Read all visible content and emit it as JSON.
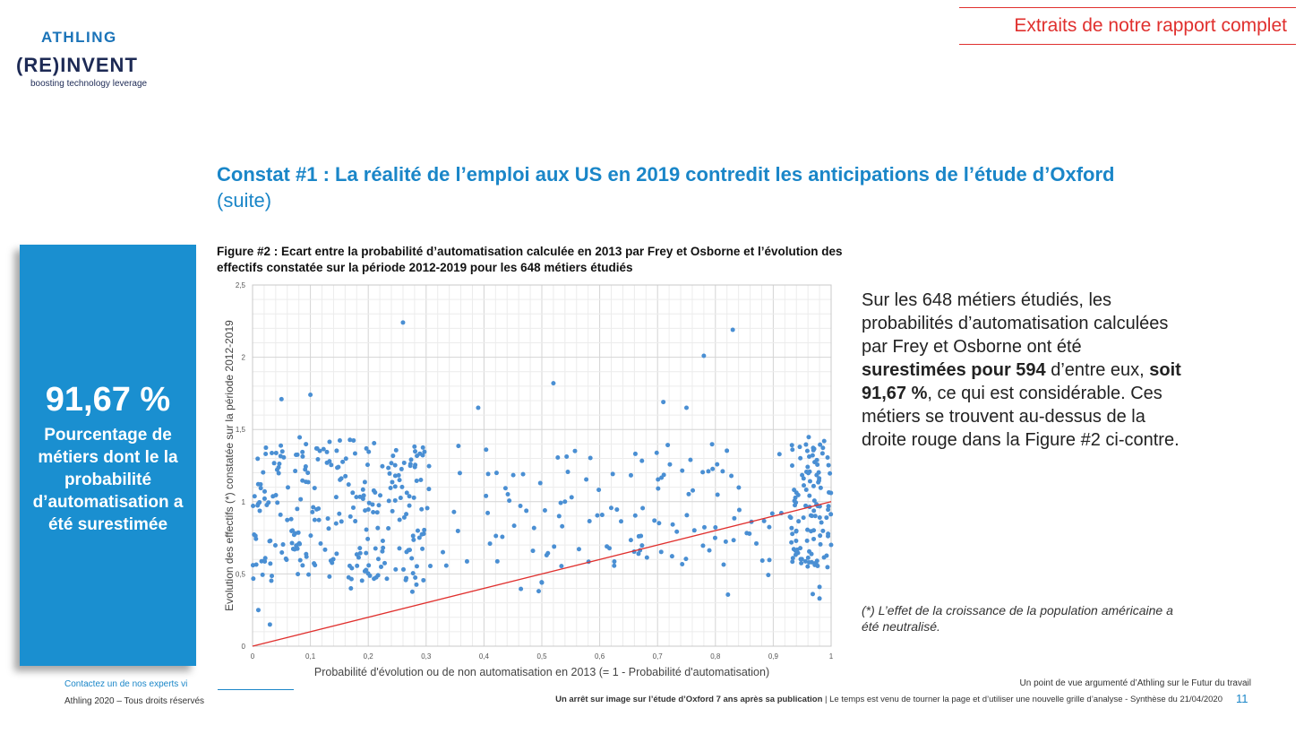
{
  "logo": {
    "brand": "ATHLING",
    "tagline_main": "(RE)INVENT",
    "tagline_sub": "boosting technology leverage"
  },
  "header": {
    "report_link": "Extraits de notre rapport complet"
  },
  "title": {
    "main": "Constat #1 : La réalité de l’emploi aux US en 2019 contredit les anticipations de l’étude d’Oxford",
    "suffix": " (suite)"
  },
  "kpi": {
    "value": "91,67 %",
    "label": "Pourcentage de métiers dont le la probabilité d’automatisation a été surestimée"
  },
  "figure": {
    "caption": "Figure #2 : Ecart entre la probabilité d’automatisation calculée en 2013 par Frey et Osborne et l’évolution des effectifs constatée sur la période 2012-2019 pour les 648 métiers étudiés"
  },
  "side": {
    "p1": "Sur les 648 métiers étudiés, les probabilités d’automatisation calculées par Frey et Osborne ont été ",
    "b1": "surestimées pour 594",
    "p2": " d’entre eux, ",
    "b2": "soit 91,67 %",
    "p3": ", ce qui est considérable. Ces métiers se trouvent au-dessus de la droite rouge dans la Figure #2 ci-contre.",
    "note": "(*) L’effet de la croissance de la population américaine a été neutralisé."
  },
  "footer": {
    "contact": "Contactez un de nos experts vi",
    "rights": "Athling 2020 – Tous droits réservés",
    "right_line1": "Un point de vue argumenté d’Athling sur le Futur du travail",
    "right_bold": "Un arrêt sur image sur l’étude d’Oxford 7 ans après sa publication",
    "right_rest": " | Le temps est venu de tourner la page et d’utiliser une nouvelle grille d’analyse - Synthèse du 21/04/2020",
    "page": "11"
  },
  "colors": {
    "accent": "#1a86c8",
    "kpi_bg": "#1a8fd0",
    "red": "#e0302e",
    "point": "#4a8fd3"
  },
  "chart_data": {
    "type": "scatter",
    "title": "",
    "xlabel": "Probabilité d'évolution ou de non automatisation en 2013 (= 1 - Probabilité d'automatisation)",
    "ylabel": "Evolution des effectifs (*) constatée sur la période 2012-2019",
    "xlim": [
      0,
      1
    ],
    "ylim": [
      0,
      2.5
    ],
    "x_ticks": [
      "0",
      "0,1",
      "0,2",
      "0,3",
      "0,4",
      "0,5",
      "0,6",
      "0,7",
      "0,8",
      "0,9",
      "1"
    ],
    "y_ticks": [
      "0",
      "0,5",
      "1",
      "1,5",
      "2",
      "2,5"
    ],
    "grid": true,
    "reference_line": {
      "name": "y = x",
      "from": [
        0,
        0
      ],
      "to": [
        1,
        1
      ],
      "color": "#e0302e"
    },
    "notable_points": [
      [
        0.26,
        2.24
      ],
      [
        0.83,
        2.19
      ],
      [
        0.78,
        2.01
      ],
      [
        0.52,
        1.82
      ],
      [
        0.1,
        1.74
      ],
      [
        0.05,
        1.71
      ],
      [
        0.39,
        1.65
      ],
      [
        0.71,
        1.69
      ],
      [
        0.75,
        1.65
      ],
      [
        0.01,
        0.25
      ],
      [
        0.03,
        0.15
      ],
      [
        0.17,
        0.4
      ],
      [
        0.98,
        0.33
      ],
      [
        0.98,
        0.41
      ],
      [
        0.5,
        0.44
      ]
    ],
    "series_count": 648
  }
}
